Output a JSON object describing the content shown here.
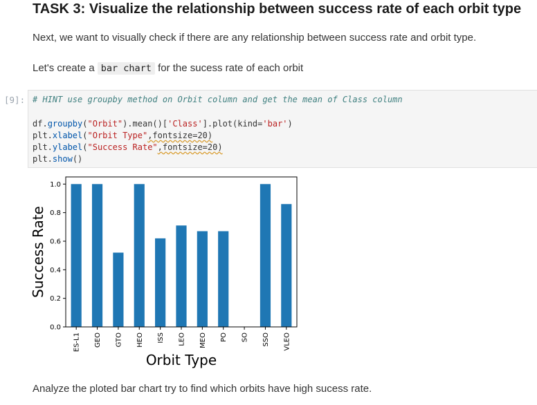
{
  "heading": "TASK 3: Visualize the relationship between success rate of each orbit type",
  "intro": "Next, we want to visually check if there are any relationship between success rate and orbit type.",
  "create_prefix": "Let's create a ",
  "create_code": "bar chart",
  "create_suffix": " for the sucess rate of each orbit",
  "cell_prompt": "[9]:",
  "code": {
    "comment": "# HINT use groupby method on Orbit column and get the mean of Class column",
    "l2_a": "df.",
    "l2_fn": "groupby",
    "l2_b": "(",
    "l2_s1": "\"Orbit\"",
    "l2_c": ").mean()[",
    "l2_s2": "'Class'",
    "l2_d": "].plot(kind=",
    "l2_s3": "'bar'",
    "l2_e": ")",
    "l3_a": "plt.",
    "l3_fn": "xlabel",
    "l3_b": "(",
    "l3_s": "\"Orbit Type\"",
    "l3_c": ",fontsize=20)",
    "l4_a": "plt.",
    "l4_fn": "ylabel",
    "l4_b": "(",
    "l4_s": "\"Success Rate\"",
    "l4_c": ",fontsize=20)",
    "l5_a": "plt.",
    "l5_fn": "show",
    "l5_b": "()"
  },
  "analyze": "Analyze the ploted bar chart try to find which orbits have high sucess rate.",
  "colors": {
    "bar": "#1f77b4"
  },
  "chart_data": {
    "type": "bar",
    "categories": [
      "ES-L1",
      "GEO",
      "GTO",
      "HEO",
      "ISS",
      "LEO",
      "MEO",
      "PO",
      "SO",
      "SSO",
      "VLEO"
    ],
    "values": [
      1.0,
      1.0,
      0.52,
      1.0,
      0.62,
      0.71,
      0.67,
      0.67,
      0.0,
      1.0,
      0.86
    ],
    "xlabel": "Orbit Type",
    "ylabel": "Success Rate",
    "ylim": [
      0,
      1.05
    ],
    "yticks": [
      "0.0",
      "0.2",
      "0.4",
      "0.6",
      "0.8",
      "1.0"
    ],
    "grid": false
  }
}
